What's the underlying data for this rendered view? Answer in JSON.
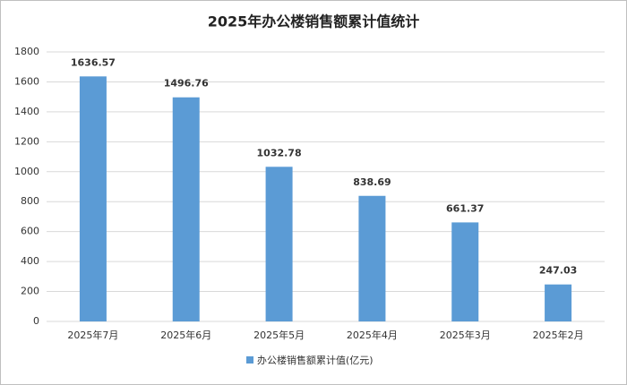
{
  "chart_data": {
    "type": "bar",
    "title": "2025年办公楼销售额累计值统计",
    "categories": [
      "2025年7月",
      "2025年6月",
      "2025年5月",
      "2025年4月",
      "2025年3月",
      "2025年2月"
    ],
    "series": [
      {
        "name": "办公楼销售额累计值(亿元)",
        "color": "#5b9bd5",
        "values": [
          1636.57,
          1496.76,
          1032.78,
          838.69,
          661.37,
          247.03
        ]
      }
    ],
    "ylim": [
      0,
      1800
    ],
    "yticks": [
      0,
      200,
      400,
      600,
      800,
      1000,
      1200,
      1400,
      1600,
      1800
    ],
    "grid": true,
    "legend": "bottom"
  }
}
